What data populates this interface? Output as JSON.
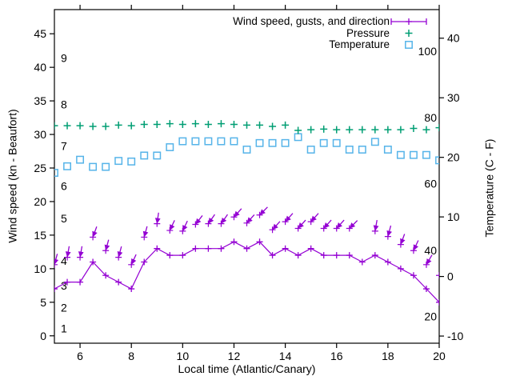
{
  "legend": {
    "entries": [
      {
        "label": "Wind speed, gusts, and direction",
        "marker": "errorbar-line",
        "color": "#9400d3"
      },
      {
        "label": "Pressure",
        "marker": "plus",
        "color": "#009e73"
      },
      {
        "label": "Temperature",
        "marker": "open-square",
        "color": "#56b4e9"
      }
    ]
  },
  "chart_data": {
    "type": "line",
    "title": "",
    "xlabel": "Local time (Atlantic/Canary)",
    "ylabel_left": "Wind speed (kn - Beaufort)",
    "ylabel_right": "Temperature (C - F)",
    "grid": false,
    "legend_position": "top-right-inside",
    "x_range": [
      5,
      20
    ],
    "x_ticks": [
      6,
      8,
      10,
      12,
      14,
      16,
      18,
      20
    ],
    "y_left_range": [
      -1.1,
      48.6
    ],
    "y_left_ticks": [
      0,
      5,
      10,
      15,
      20,
      25,
      30,
      35,
      40,
      45
    ],
    "y_right_range": [
      -11.2,
      44.8
    ],
    "y_right_ticks": [
      -10,
      0,
      10,
      20,
      30,
      40
    ],
    "beaufort_scale_labels": [
      {
        "label": "1",
        "kn": 1.1
      },
      {
        "label": "2",
        "kn": 4.2
      },
      {
        "label": "3",
        "kn": 7.5
      },
      {
        "label": "4",
        "kn": 11.2
      },
      {
        "label": "5",
        "kn": 17.5
      },
      {
        "label": "6",
        "kn": 22.3
      },
      {
        "label": "7",
        "kn": 28.3
      },
      {
        "label": "8",
        "kn": 34.5
      },
      {
        "label": "9",
        "kn": 41.4
      }
    ],
    "fahrenheit_scale_labels": [
      {
        "label": "20",
        "c": -6.7
      },
      {
        "label": "40",
        "c": 4.4
      },
      {
        "label": "60",
        "c": 15.6
      },
      {
        "label": "80",
        "c": 26.7
      },
      {
        "label": "100",
        "c": 37.8
      }
    ],
    "x": [
      5,
      5.5,
      6,
      6.5,
      7,
      7.5,
      8,
      8.5,
      9,
      9.5,
      10,
      10.5,
      11,
      11.5,
      12,
      12.5,
      13,
      13.5,
      14,
      14.5,
      15,
      15.5,
      16,
      16.5,
      17,
      17.5,
      18,
      18.5,
      19,
      19.5,
      20
    ],
    "series": [
      {
        "name": "Wind speed",
        "axis": "left",
        "unit": "kn",
        "color": "#9400d3",
        "marker": "plus",
        "line": true,
        "values": [
          7,
          8,
          8,
          11,
          9,
          8,
          7,
          11,
          13,
          12,
          12,
          13,
          13,
          13,
          14,
          13,
          14,
          12,
          13,
          12,
          13,
          12,
          12,
          12,
          11,
          12,
          11,
          10,
          9,
          7,
          5
        ]
      },
      {
        "name": "Gusts and direction",
        "axis": "left",
        "unit": "kn",
        "color": "#9400d3",
        "marker": "arrow",
        "values": [
          10.6,
          11.7,
          11.7,
          14.7,
          12.7,
          11.7,
          10.6,
          14.7,
          16.7,
          15.7,
          15.6,
          16.6,
          16.7,
          16.7,
          17.7,
          16.8,
          18,
          15.8,
          17,
          16,
          17,
          16,
          16,
          16,
          null,
          15.6,
          14.8,
          13.6,
          12.7,
          10.6,
          9
        ],
        "arrow_lean_deg_from_down": [
          15,
          10,
          10,
          20,
          15,
          15,
          25,
          15,
          8,
          25,
          25,
          38,
          35,
          35,
          42,
          42,
          45,
          42,
          42,
          42,
          42,
          42,
          42,
          45,
          null,
          10,
          15,
          20,
          25,
          30,
          30
        ]
      },
      {
        "name": "Pressure",
        "axis": "left",
        "unit": "left-axis position",
        "color": "#009e73",
        "marker": "plus",
        "line": false,
        "values": [
          31.3,
          31.3,
          31.3,
          31.2,
          31.2,
          31.4,
          31.3,
          31.5,
          31.5,
          31.6,
          31.5,
          31.6,
          31.5,
          31.6,
          31.5,
          31.4,
          31.4,
          31.2,
          31.4,
          30.6,
          30.7,
          30.8,
          30.7,
          30.7,
          30.7,
          30.7,
          30.7,
          30.7,
          30.9,
          30.7,
          31.0
        ]
      },
      {
        "name": "Temperature",
        "axis": "right",
        "unit": "C",
        "color": "#56b4e9",
        "marker": "open-square",
        "line": false,
        "values": [
          17.4,
          18.5,
          19.6,
          18.4,
          18.4,
          19.4,
          19.3,
          20.3,
          20.3,
          21.7,
          22.7,
          22.7,
          22.7,
          22.7,
          22.7,
          21.3,
          22.4,
          22.4,
          22.4,
          23.4,
          21.3,
          22.4,
          22.4,
          21.3,
          21.3,
          22.6,
          21.3,
          20.4,
          20.4,
          20.4,
          19.5
        ]
      }
    ]
  }
}
